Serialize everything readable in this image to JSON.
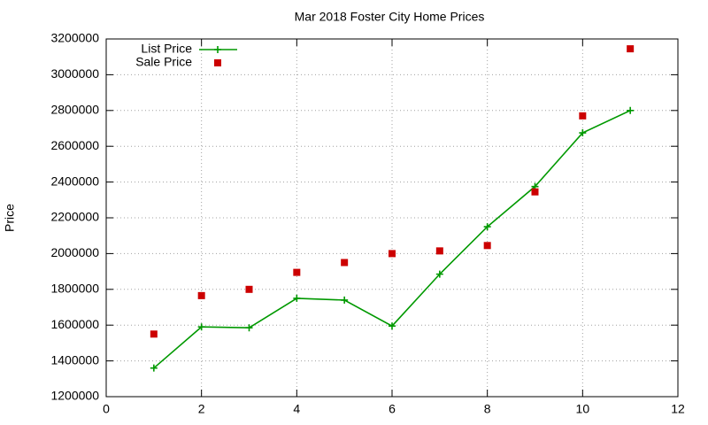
{
  "chart_data": {
    "type": "line",
    "title": "Mar 2018 Foster City Home Prices",
    "y_label": "Price",
    "x": [
      1,
      2,
      3,
      4,
      5,
      6,
      7,
      8,
      9,
      10,
      11
    ],
    "series": [
      {
        "name": "List Price",
        "color": "#009900",
        "mode": "lines+markers",
        "marker": "plus",
        "values": [
          1360000,
          1590000,
          1585000,
          1750000,
          1740000,
          1595000,
          1885000,
          2150000,
          2375000,
          2675000,
          2800000
        ]
      },
      {
        "name": "Sale Price",
        "color": "#cc0000",
        "mode": "markers",
        "marker": "square",
        "values": [
          1550000,
          1765000,
          1800000,
          1895000,
          1950000,
          2000000,
          2015000,
          2045000,
          2345000,
          2770000,
          3145000
        ]
      }
    ],
    "xlim": [
      0,
      12
    ],
    "xticks": [
      0,
      2,
      4,
      6,
      8,
      10,
      12
    ],
    "ylim": [
      1200000,
      3200000
    ],
    "yticks": [
      1200000,
      1400000,
      1600000,
      1800000,
      2000000,
      2200000,
      2400000,
      2600000,
      2800000,
      3000000,
      3200000
    ],
    "grid": true,
    "legend": "top-left"
  }
}
